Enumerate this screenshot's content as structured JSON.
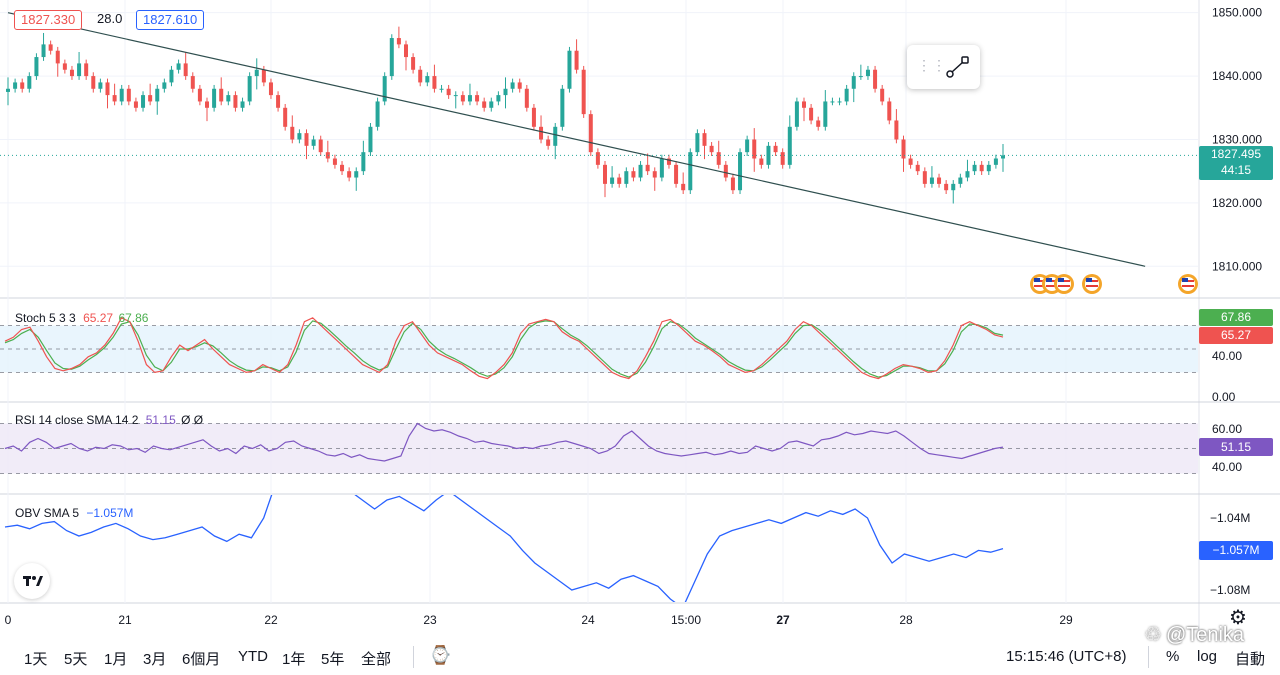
{
  "header": {
    "price_left": "1827.330",
    "spread": "28.0",
    "price_right": "1827.610"
  },
  "current_price": {
    "price": "1827.495",
    "countdown": "44:15",
    "color": "#26a69a"
  },
  "price_axis": [
    "1850.000",
    "1840.000",
    "1830.000",
    "1820.000",
    "1810.000"
  ],
  "price_axis_values": [
    1850,
    1840,
    1830,
    1820,
    1810
  ],
  "stoch": {
    "label": "Stoch 5 3 3",
    "k": "65.27",
    "d": "67.86",
    "k_color": "#ef5350",
    "d_color": "#4caf50",
    "axis": [
      "40.00",
      "0.00"
    ],
    "tag_d": "67.86",
    "tag_k": "65.27"
  },
  "rsi": {
    "label": "RSI 14 close SMA 14 2",
    "value": "51.15",
    "extra": "Ø Ø",
    "color": "#7e57c2",
    "axis": [
      "60.00",
      "40.00"
    ],
    "tag": "51.15"
  },
  "obv": {
    "label": "OBV SMA 5",
    "value": "−1.057M",
    "color": "#2962ff",
    "axis": [
      "−1.04M",
      "−1.08M"
    ],
    "tag": "−1.057M"
  },
  "time_axis": [
    "0",
    "21",
    "22",
    "23",
    "24",
    "15:00",
    "27",
    "28",
    "29"
  ],
  "bottom_bar": {
    "ranges": [
      "1天",
      "5天",
      "1月",
      "3月",
      "6個月",
      "YTD",
      "1年",
      "5年",
      "全部"
    ],
    "clock": "15:15:46 (UTC+8)",
    "percent": "%",
    "log": "log",
    "auto": "自動"
  },
  "watermark": "@Tenika",
  "logo": "TV",
  "chart_data": [
    {
      "type": "candlestick",
      "title": "",
      "x": [
        "21",
        "22",
        "23",
        "24",
        "27",
        "28",
        "29"
      ],
      "ylim": [
        1805,
        1852
      ],
      "last": 1827.495,
      "trendline": {
        "from": [
          0,
          1850.0
        ],
        "to": [
          160,
          1810.0
        ]
      },
      "candles_close": [
        1838,
        1839,
        1838,
        1840,
        1843,
        1845,
        1844,
        1842,
        1841,
        1840,
        1842,
        1840,
        1838,
        1839,
        1837,
        1836,
        1838,
        1836,
        1835,
        1837,
        1836,
        1838,
        1839,
        1841,
        1842,
        1840,
        1838,
        1836,
        1835,
        1838,
        1836,
        1837,
        1835,
        1836,
        1840,
        1841,
        1839,
        1837,
        1835,
        1832,
        1830,
        1831,
        1829,
        1830,
        1828,
        1827,
        1826,
        1825,
        1824,
        1825,
        1828,
        1832,
        1836,
        1840,
        1846,
        1845,
        1843,
        1841,
        1839,
        1840,
        1838,
        1838,
        1837,
        1837,
        1836,
        1837,
        1836,
        1835,
        1836,
        1837,
        1838,
        1839,
        1838,
        1835,
        1832,
        1830,
        1829,
        1832,
        1838,
        1844,
        1841,
        1834,
        1828,
        1826,
        1823,
        1824,
        1823,
        1825,
        1824,
        1826,
        1825,
        1824,
        1827,
        1826,
        1823,
        1822,
        1828,
        1831,
        1829,
        1828,
        1826,
        1824,
        1822,
        1828,
        1830,
        1827,
        1826,
        1829,
        1828,
        1826,
        1832,
        1836,
        1835,
        1833,
        1832,
        1836,
        1836,
        1836,
        1838,
        1840,
        1840,
        1841,
        1838,
        1836,
        1833,
        1830,
        1827,
        1826,
        1825,
        1823,
        1824,
        1823,
        1822,
        1823,
        1824,
        1825,
        1826,
        1825,
        1826,
        1827,
        1827.495
      ],
      "lows_min": 1817,
      "highs_max": 1848
    },
    {
      "type": "line",
      "title": "Stoch 5 3 3",
      "ylim": [
        0,
        100
      ],
      "series": [
        {
          "name": "",
          "values": [
            60,
            65,
            75,
            78,
            60,
            40,
            25,
            22,
            25,
            30,
            40,
            45,
            55,
            70,
            90,
            85,
            60,
            30,
            20,
            22,
            40,
            55,
            48,
            55,
            62,
            50,
            40,
            30,
            25,
            20,
            22,
            30,
            25,
            20,
            30,
            55,
            85,
            90,
            80,
            70,
            60,
            50,
            40,
            30,
            25,
            20,
            30,
            60,
            80,
            85,
            70,
            55,
            45,
            40,
            35,
            30,
            22,
            15,
            12,
            20,
            30,
            45,
            70,
            82,
            85,
            88,
            85,
            72,
            65,
            60,
            50,
            40,
            30,
            20,
            15,
            12,
            22,
            40,
            60,
            85,
            88,
            80,
            70,
            60,
            55,
            48,
            40,
            30,
            25,
            20,
            22,
            30,
            40,
            50,
            60,
            75,
            85,
            80,
            70,
            60,
            50,
            40,
            30,
            20,
            15,
            12,
            18,
            25,
            30,
            28,
            25,
            20,
            22,
            35,
            55,
            80,
            85,
            80,
            75,
            68,
            65.27
          ]
        },
        {
          "name": "",
          "values": [
            58,
            62,
            70,
            75,
            65,
            48,
            32,
            25,
            24,
            28,
            36,
            43,
            52,
            65,
            82,
            85,
            68,
            42,
            27,
            22,
            33,
            50,
            50,
            53,
            58,
            54,
            45,
            35,
            28,
            23,
            22,
            27,
            26,
            22,
            27,
            46,
            74,
            86,
            83,
            74,
            64,
            54,
            45,
            35,
            28,
            23,
            27,
            50,
            72,
            83,
            75,
            60,
            50,
            43,
            38,
            32,
            26,
            19,
            15,
            18,
            26,
            40,
            62,
            77,
            84,
            86,
            85,
            76,
            68,
            62,
            54,
            44,
            34,
            24,
            18,
            14,
            19,
            33,
            53,
            76,
            85,
            82,
            74,
            64,
            57,
            50,
            43,
            34,
            28,
            23,
            22,
            27,
            36,
            46,
            56,
            70,
            80,
            81,
            74,
            64,
            54,
            44,
            34,
            25,
            18,
            14,
            16,
            22,
            28,
            28,
            26,
            22,
            22,
            31,
            48,
            72,
            82,
            81,
            77,
            70,
            67.86
          ]
        }
      ]
    },
    {
      "type": "line",
      "title": "RSI 14 close SMA 14 2",
      "ylim": [
        20,
        80
      ],
      "series": [
        {
          "name": "",
          "values": [
            50,
            52,
            48,
            55,
            58,
            55,
            50,
            52,
            54,
            50,
            48,
            51,
            50,
            53,
            52,
            49,
            50,
            47,
            52,
            50,
            49,
            51,
            53,
            55,
            57,
            52,
            48,
            50,
            46,
            52,
            50,
            53,
            48,
            50,
            55,
            56,
            52,
            50,
            48,
            45,
            44,
            46,
            43,
            45,
            42,
            41,
            40,
            42,
            44,
            60,
            70,
            66,
            64,
            65,
            63,
            60,
            58,
            55,
            56,
            54,
            53,
            52,
            50,
            51,
            50,
            52,
            53,
            55,
            56,
            54,
            52,
            50,
            46,
            48,
            52,
            60,
            64,
            58,
            52,
            48,
            46,
            45,
            44,
            45,
            46,
            47,
            45,
            46,
            48,
            46,
            47,
            52,
            50,
            48,
            50,
            55,
            56,
            54,
            52,
            57,
            58,
            60,
            63,
            61,
            62,
            64,
            63,
            62,
            64,
            60,
            55,
            50,
            46,
            45,
            44,
            43,
            42,
            44,
            46,
            48,
            50,
            51.15
          ]
        }
      ]
    },
    {
      "type": "line",
      "title": "OBV SMA 5",
      "series": [
        {
          "name": "",
          "values": [
            -1.045,
            -1.044,
            -1.046,
            -1.043,
            -1.042,
            -1.047,
            -1.05,
            -1.048,
            -1.045,
            -1.043,
            -1.046,
            -1.05,
            -1.052,
            -1.051,
            -1.049,
            -1.047,
            -1.045,
            -1.05,
            -1.053,
            -1.049,
            -1.051,
            -1.04,
            -1.02,
            -1.0,
            -0.99,
            -1.0,
            -1.01,
            -1.02,
            -1.025,
            -1.03,
            -1.035,
            -1.03,
            -1.028,
            -1.032,
            -1.036,
            -1.03,
            -1.025,
            -1.03,
            -1.035,
            -1.04,
            -1.045,
            -1.05,
            -1.058,
            -1.065,
            -1.07,
            -1.075,
            -1.08,
            -1.078,
            -1.076,
            -1.079,
            -1.074,
            -1.072,
            -1.075,
            -1.078,
            -1.085,
            -1.09,
            -1.075,
            -1.06,
            -1.05,
            -1.047,
            -1.045,
            -1.043,
            -1.041,
            -1.043,
            -1.04,
            -1.037,
            -1.039,
            -1.036,
            -1.038,
            -1.035,
            -1.04,
            -1.055,
            -1.065,
            -1.06,
            -1.062,
            -1.064,
            -1.062,
            -1.06,
            -1.062,
            -1.058,
            -1.059,
            -1.057
          ]
        }
      ]
    }
  ]
}
